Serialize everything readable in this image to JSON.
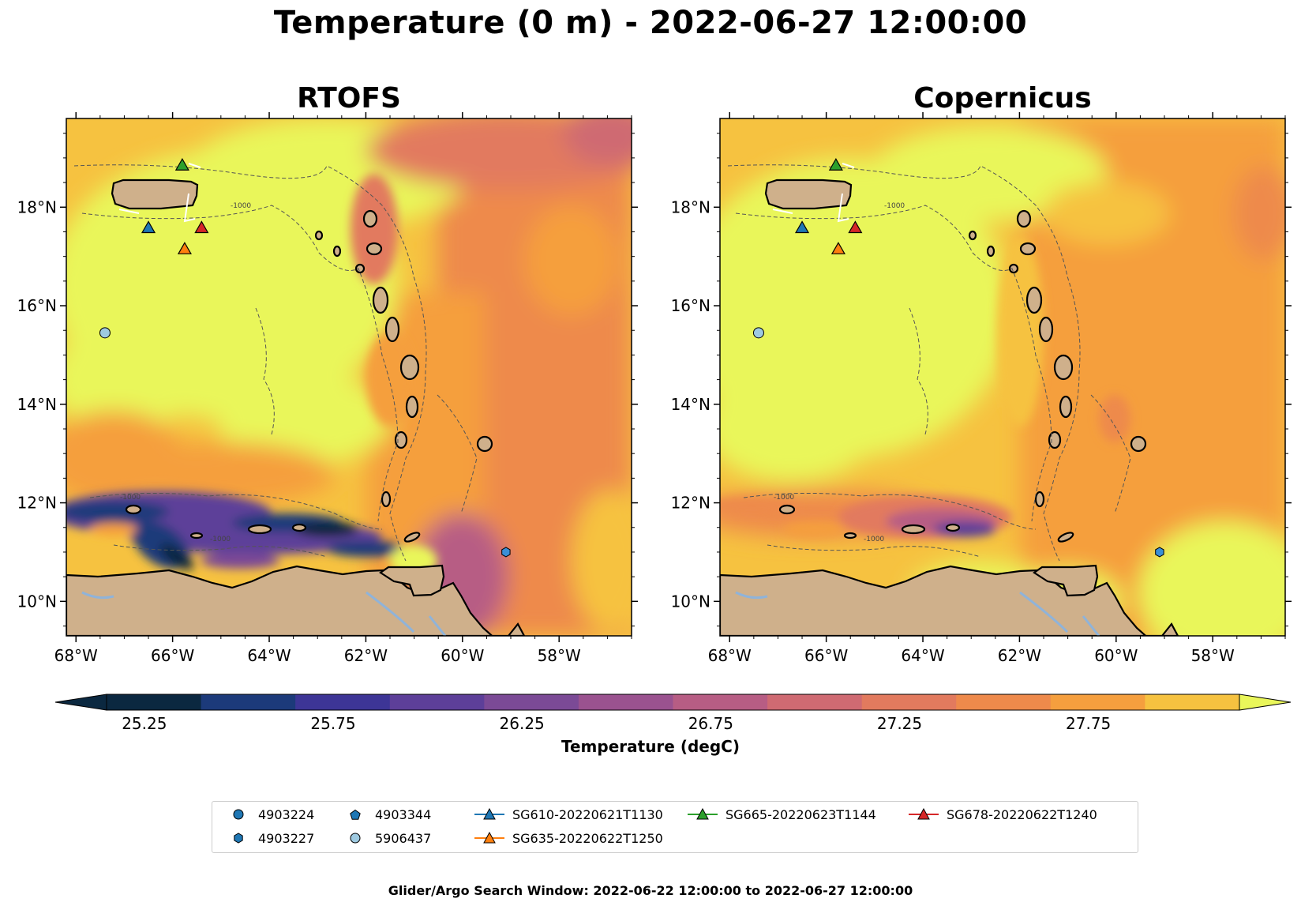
{
  "title": "Temperature (0 m) - 2022-06-27 12:00:00",
  "panels": [
    {
      "title": "RTOFS"
    },
    {
      "title": "Copernicus"
    }
  ],
  "axes": {
    "lat_ticks": [
      "10°N",
      "12°N",
      "14°N",
      "16°N",
      "18°N"
    ],
    "lon_ticks": [
      "68°W",
      "66°W",
      "64°W",
      "62°W",
      "60°W",
      "58°W"
    ],
    "lon_range": [
      -68.2,
      -56.5
    ],
    "lat_range": [
      9.3,
      19.8
    ]
  },
  "contour_label": "-1000",
  "colorbar": {
    "label": "Temperature (degC)",
    "ticks": [
      "25.25",
      "25.75",
      "26.25",
      "26.75",
      "27.25",
      "27.75"
    ],
    "extend": "both",
    "colors": [
      "#0b2840",
      "#1c3a7a",
      "#3d3596",
      "#5d3f99",
      "#7b4a96",
      "#9a528f",
      "#b75d84",
      "#cf6a72",
      "#e27a5e",
      "#ee8a4b",
      "#f59f3e",
      "#f6c240",
      "#e9f65a"
    ]
  },
  "colors": {
    "land": "#cfb08b",
    "river": "#8fb3d9",
    "lake": "#9bc0e0"
  },
  "markers": [
    {
      "name": "SG665-20220623T1144",
      "lon": -65.8,
      "lat": 18.85,
      "color": "#2ca02c"
    },
    {
      "name": "SG610-20220621T1130",
      "lon": -66.5,
      "lat": 17.58,
      "color": "#1f77b4"
    },
    {
      "name": "SG678-20220622T1240",
      "lon": -65.4,
      "lat": 17.58,
      "color": "#d62728"
    },
    {
      "name": "SG635-20220622T1250",
      "lon": -65.75,
      "lat": 17.15,
      "color": "#ff7f0e"
    },
    {
      "name": "5906437",
      "lon": -67.4,
      "lat": 15.45,
      "color": "#9ecae1"
    },
    {
      "name": "4903227",
      "lon": -59.1,
      "lat": 11.0,
      "color": "#3a8fd6"
    }
  ],
  "legend": [
    {
      "label": "4903224",
      "symbol": "circle",
      "color": "#1f77b4"
    },
    {
      "label": "4903227",
      "symbol": "hexagon",
      "color": "#1f77b4"
    },
    {
      "label": "4903344",
      "symbol": "pentagon",
      "color": "#1f77b4"
    },
    {
      "label": "5906437",
      "symbol": "circle",
      "color": "#9ecae1"
    },
    {
      "label": "SG610-20220621T1130",
      "symbol": "triangle-line",
      "color": "#1f77b4"
    },
    {
      "label": "SG635-20220622T1250",
      "symbol": "triangle-line",
      "color": "#ff7f0e"
    },
    {
      "label": "SG665-20220623T1144",
      "symbol": "triangle-line",
      "color": "#2ca02c"
    },
    {
      "label": "SG678-20220622T1240",
      "symbol": "triangle-line",
      "color": "#d62728"
    }
  ],
  "footer": "Glider/Argo Search Window: 2022-06-22 12:00:00 to 2022-06-27 12:00:00"
}
